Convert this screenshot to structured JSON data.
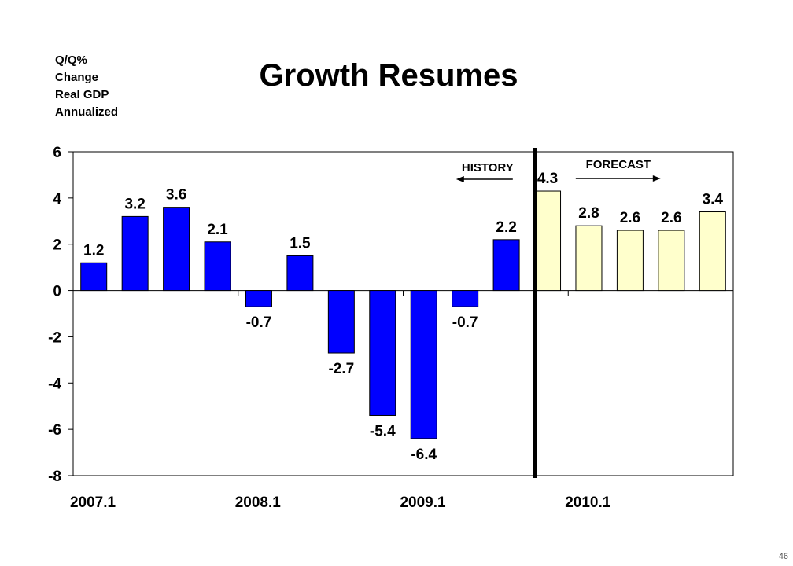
{
  "page_number": "46",
  "chart_data": {
    "type": "bar",
    "title": "Growth Resumes",
    "ylabel": [
      "Q/Q%",
      "Change",
      "Real GDP",
      "Annualized"
    ],
    "xlabel": "",
    "ylim": [
      -8,
      6
    ],
    "yticks": [
      "-8",
      "-6",
      "-4",
      "-2",
      "0",
      "2",
      "4",
      "6"
    ],
    "xtick_labels": [
      "2007.1",
      "2008.1",
      "2009.1",
      "2010.1"
    ],
    "grid": false,
    "history_label": "HISTORY",
    "forecast_label": "FORECAST",
    "history_color": "#0000FF",
    "forecast_color": "#FFFFCC",
    "values": [
      1.2,
      3.2,
      3.6,
      2.1,
      -0.7,
      1.5,
      -2.7,
      -5.4,
      -6.4,
      -0.7,
      2.2,
      4.3,
      2.8,
      2.6,
      2.6,
      3.4
    ],
    "value_labels": [
      "1.2",
      "3.2",
      "3.6",
      "2.1",
      "-0.7",
      "1.5",
      "-2.7",
      "-5.4",
      "-6.4",
      "-0.7",
      "2.2",
      "4.3",
      "2.8",
      "2.6",
      "2.6",
      "3.4"
    ],
    "series": [
      {
        "values": [
          1.2,
          3.2,
          3.6,
          2.1,
          -0.7,
          1.5,
          -2.7,
          -5.4,
          -6.4,
          -0.7,
          2.2
        ]
      },
      {
        "values": [
          4.3,
          2.8,
          2.6,
          2.6,
          3.4
        ]
      }
    ]
  }
}
